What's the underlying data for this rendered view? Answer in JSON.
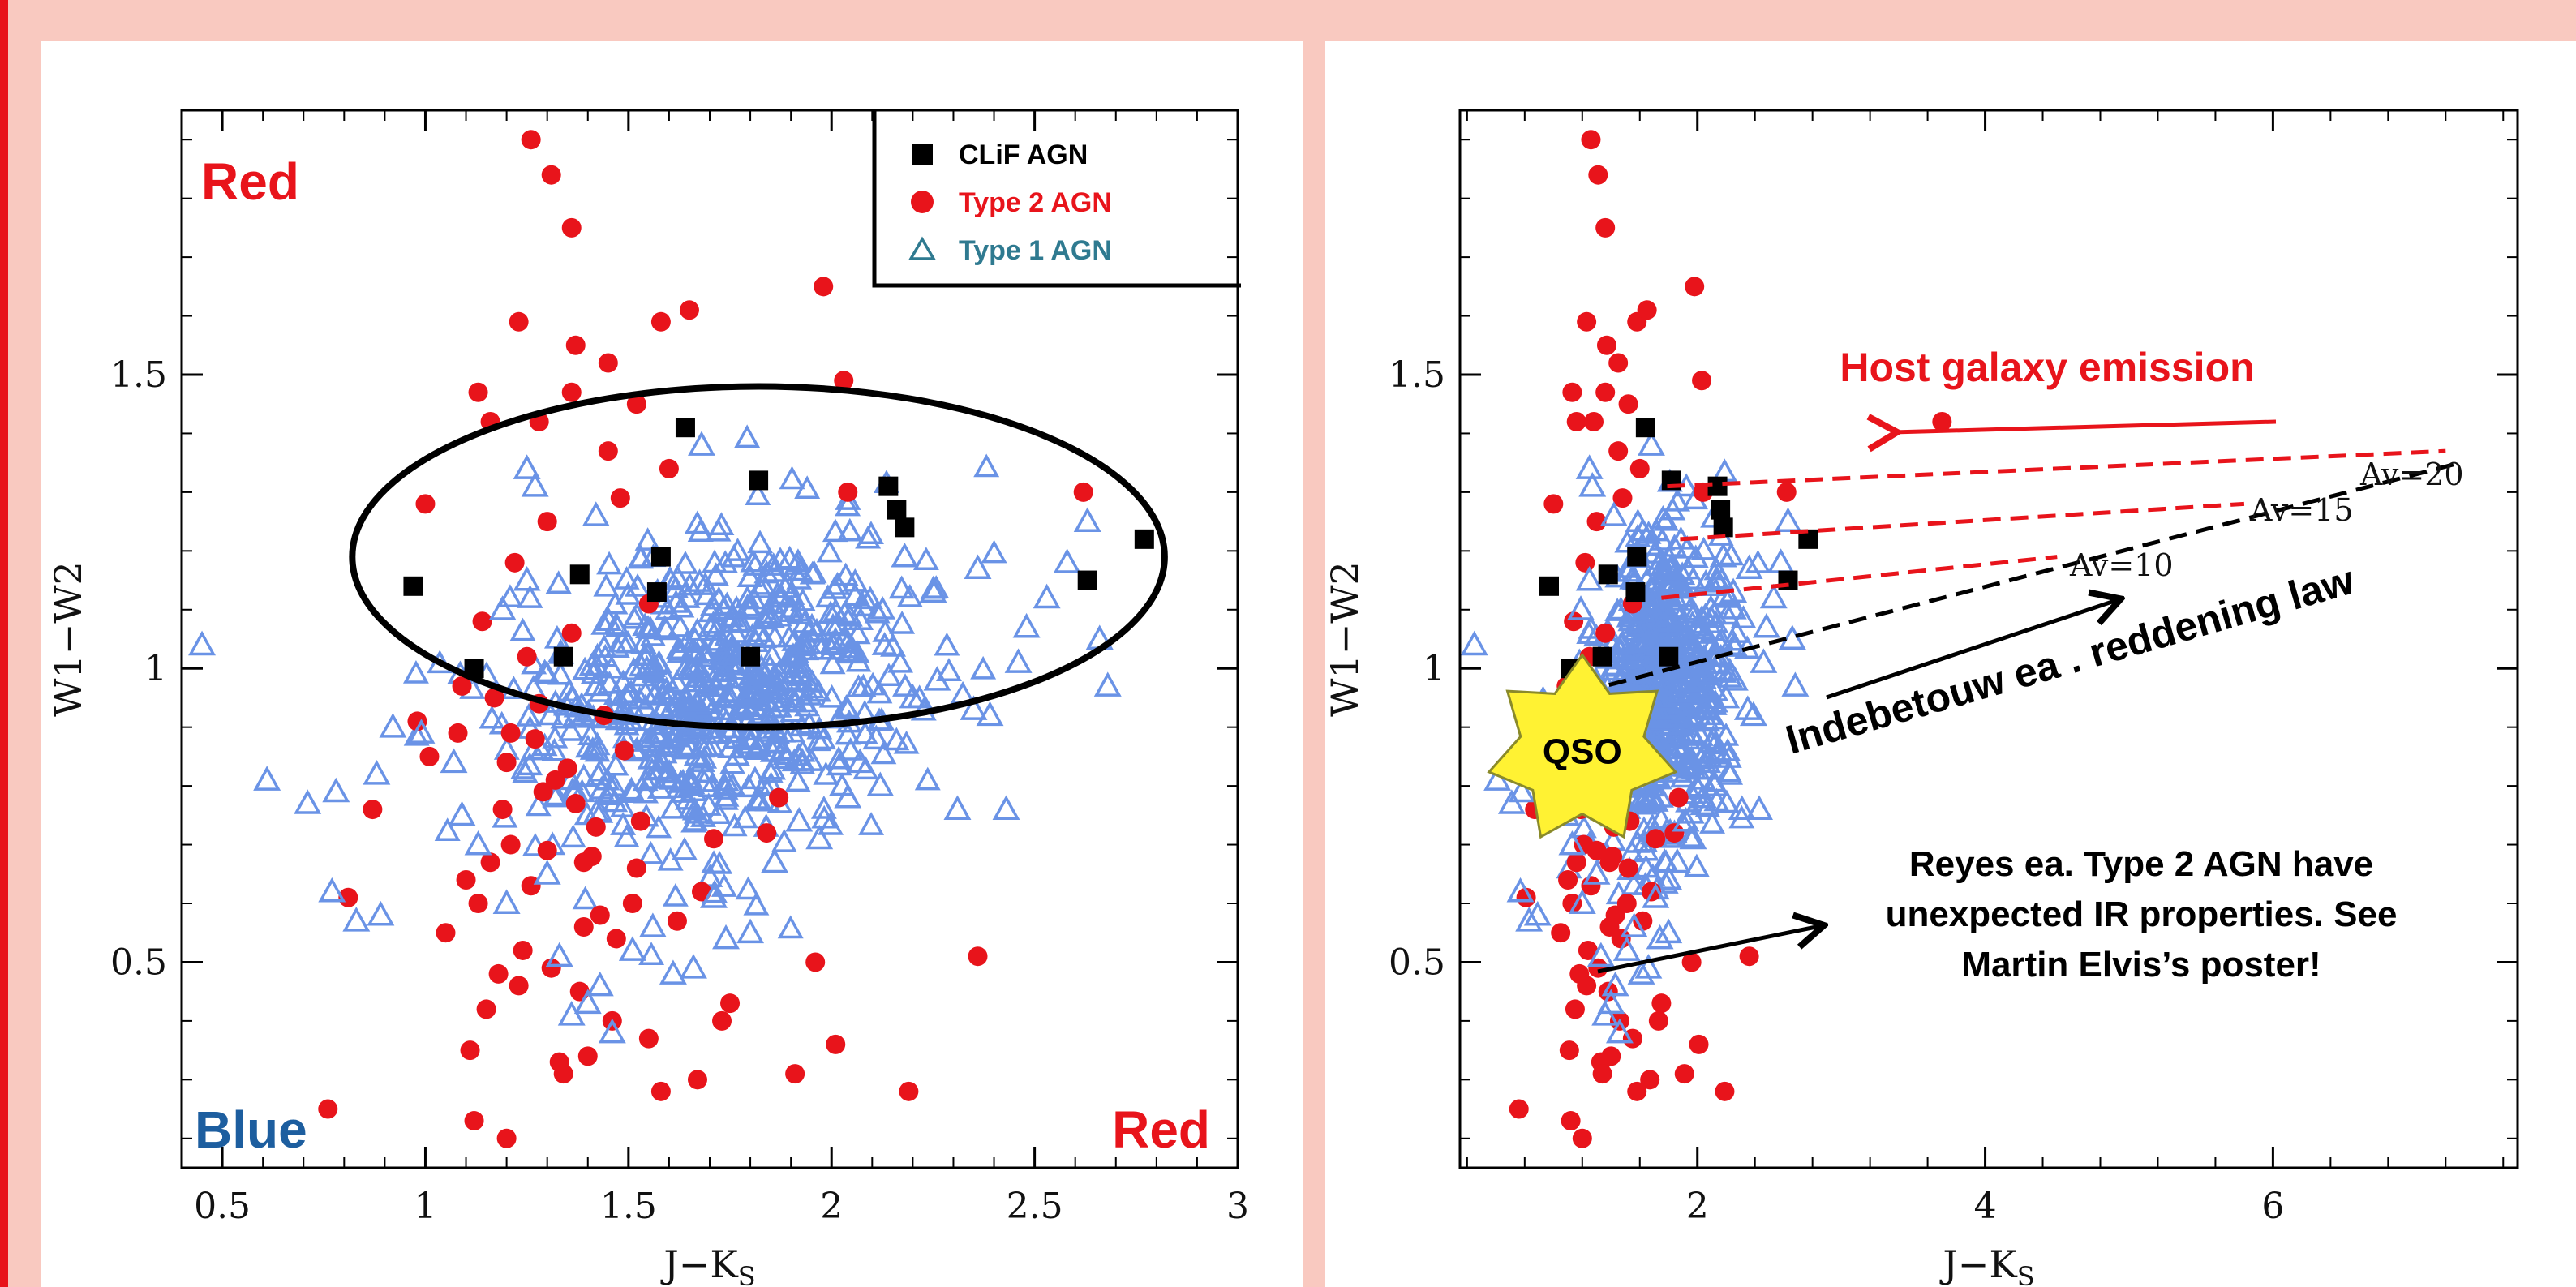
{
  "colors": {
    "red": "#e8141b",
    "blue": "#6a93e6",
    "black": "#000000",
    "legend_type1": "#2f7a90",
    "blue_label": "#1d5e9f",
    "star": "#fff233"
  },
  "chart_data": [
    {
      "type": "scatter",
      "xlabel_main": "J−K",
      "xlabel_sub": "S",
      "ylabel": "W1−W2",
      "xlim": [
        0.4,
        3.0
      ],
      "ylim": [
        0.15,
        1.95
      ],
      "xticks": [
        "0.5",
        "1",
        "1.5",
        "2",
        "2.5",
        "3"
      ],
      "yticks": [
        "0.5",
        "1",
        "1.5"
      ],
      "corner_labels": {
        "top_left": "Red",
        "bottom_left": "Blue",
        "bottom_right": "Red"
      },
      "legend": {
        "position": "top-right",
        "entries": [
          "CLiF AGN",
          "Type 2 AGN",
          "Type 1 AGN"
        ]
      },
      "ellipse": {
        "center": [
          1.82,
          1.19
        ],
        "semi_axes": [
          1.0,
          0.29
        ]
      },
      "series": [
        {
          "name": "CLiF AGN",
          "marker": "square",
          "color": "#000000",
          "x": [
            0.97,
            1.12,
            1.34,
            1.38,
            1.57,
            1.58,
            1.64,
            1.8,
            1.82,
            2.14,
            2.16,
            2.18,
            2.63,
            2.77
          ],
          "y": [
            1.14,
            1.0,
            1.02,
            1.16,
            1.13,
            1.19,
            1.41,
            1.02,
            1.32,
            1.31,
            1.27,
            1.24,
            1.15,
            1.22
          ]
        },
        {
          "name": "Type 2 AGN",
          "marker": "circle",
          "color": "#e8141b",
          "x": [
            1.26,
            1.31,
            1.37,
            1.36,
            1.16,
            1.58,
            1.65,
            1.98,
            1.36,
            1.28,
            1.23,
            1.45,
            1.6,
            1.52,
            2.04,
            2.03,
            1.13,
            2.62,
            1.45,
            0.98,
            2.36,
            2.19,
            0.76,
            0.81,
            0.87,
            1.67,
            1.91,
            1.84,
            1.01,
            1.08,
            1.21,
            1.39,
            1.51,
            1.73,
            1.4,
            1.55,
            1.75,
            1.2,
            1.33,
            1.12,
            1.87,
            1.17,
            1.0,
            1.48,
            1.3,
            1.22,
            1.14,
            1.44,
            1.27,
            1.35,
            1.29,
            1.53,
            1.41,
            1.1,
            1.62,
            1.05,
            1.96,
            1.18,
            1.38,
            1.68,
            1.24,
            1.46,
            2.01,
            1.11,
            1.34,
            1.58,
            1.15,
            1.43,
            1.26,
            1.71,
            1.19,
            1.32,
            1.49,
            1.09,
            1.25,
            1.36,
            1.55,
            1.28,
            1.21,
            1.42,
            1.16,
            1.39,
            1.31,
            1.23,
            1.47,
            1.13,
            1.3,
            1.37,
            1.2,
            1.52
          ],
          "y": [
            1.9,
            1.84,
            1.55,
            1.75,
            1.42,
            1.59,
            1.61,
            1.65,
            1.47,
            1.42,
            1.59,
            1.37,
            1.34,
            1.45,
            1.3,
            1.49,
            1.47,
            1.3,
            1.52,
            0.91,
            0.51,
            0.28,
            0.25,
            0.61,
            0.76,
            0.3,
            0.31,
            0.72,
            0.85,
            0.89,
            0.7,
            0.67,
            0.6,
            0.4,
            0.34,
            0.37,
            0.43,
            0.2,
            0.33,
            0.23,
            0.78,
            0.95,
            1.28,
            1.29,
            1.25,
            1.18,
            1.08,
            0.92,
            0.88,
            0.83,
            0.79,
            0.74,
            0.68,
            0.64,
            0.57,
            0.55,
            0.5,
            0.48,
            0.45,
            0.62,
            0.52,
            0.4,
            0.36,
            0.35,
            0.31,
            0.28,
            0.42,
            0.58,
            0.63,
            0.71,
            0.76,
            0.81,
            0.86,
            0.97,
            1.02,
            1.06,
            1.11,
            0.94,
            0.89,
            0.73,
            0.67,
            0.56,
            0.49,
            0.46,
            0.54,
            0.6,
            0.69,
            0.77,
            0.84,
            0.66
          ]
        },
        {
          "name": "Type 1 AGN",
          "marker": "triangle",
          "color": "#6a93e6",
          "x": [
            0.45,
            0.61,
            0.71,
            0.78,
            0.83,
            0.89,
            0.92,
            0.99,
            1.07,
            1.25,
            1.27,
            1.68,
            2.18,
            2.25,
            2.36,
            2.48,
            2.53,
            2.58,
            2.63,
            2.66,
            2.68,
            2.31,
            2.43,
            2.39,
            2.2,
            2.11,
            2.07,
            1.97,
            1.92,
            1.86,
            1.8,
            1.74,
            1.71,
            1.66,
            1.61,
            1.56,
            1.51,
            1.46,
            1.43,
            1.4,
            1.36,
            1.33,
            1.3,
            1.2,
            1.13,
            1.09,
            0.77,
            0.88,
            2.04,
            2.12,
            2.26,
            2.35,
            2.46,
            1.19,
            1.25,
            1.42
          ],
          "y": [
            1.04,
            0.81,
            0.77,
            0.79,
            0.57,
            0.58,
            0.9,
            0.89,
            0.84,
            1.34,
            1.31,
            1.38,
            1.19,
            1.13,
            1.17,
            1.07,
            1.12,
            1.18,
            1.25,
            1.05,
            0.97,
            0.76,
            0.76,
            0.92,
            0.95,
            0.88,
            0.84,
            0.71,
            0.74,
            0.67,
            0.55,
            0.54,
            0.61,
            0.49,
            0.48,
            0.56,
            0.52,
            0.38,
            0.46,
            0.43,
            0.41,
            0.51,
            0.65,
            0.6,
            0.7,
            0.75,
            0.62,
            0.82,
            0.78,
            0.8,
            0.98,
            0.93,
            1.01,
            1.1,
            1.15,
            1.26
          ]
        }
      ]
    },
    {
      "type": "scatter",
      "xlabel_main": "J−K",
      "xlabel_sub": "S",
      "ylabel": "W1−W2",
      "xlim": [
        0.35,
        7.7
      ],
      "ylim": [
        0.15,
        1.95
      ],
      "xticks": [
        "2",
        "4",
        "6"
      ],
      "yticks": [
        "0.5",
        "1",
        "1.5"
      ],
      "star_label": "QSO",
      "star_center": [
        1.2,
        0.86
      ],
      "annotations": {
        "host": "Host galaxy emission",
        "indebetouw": "Indebetouw  ea . reddening law",
        "reyes": [
          "Reyes ea. Type 2 AGN have",
          "unexpected IR properties. See",
          "Martin Elvis’s poster!"
        ],
        "av_labels": [
          "Av=10",
          "Av=15",
          "Av=20"
        ]
      },
      "reddening_vectors": [
        {
          "from": [
            1.79,
            1.31
          ],
          "to": [
            7.2,
            1.37
          ]
        },
        {
          "from": [
            1.88,
            1.22
          ],
          "to": [
            5.8,
            1.28
          ]
        },
        {
          "from": [
            1.75,
            1.12
          ],
          "to": [
            4.5,
            1.19
          ]
        }
      ],
      "reddening_law_line": {
        "from": [
          1.2,
          0.96
        ],
        "to": [
          7.3,
          1.35
        ]
      },
      "series": [
        {
          "name": "CLiF AGN",
          "marker": "square",
          "color": "#000000",
          "x": [
            0.97,
            1.12,
            1.34,
            1.38,
            1.57,
            1.58,
            1.64,
            1.8,
            1.82,
            2.14,
            2.16,
            2.18,
            2.63,
            2.77
          ],
          "y": [
            1.14,
            1.0,
            1.02,
            1.16,
            1.13,
            1.19,
            1.41,
            1.02,
            1.32,
            1.31,
            1.27,
            1.24,
            1.15,
            1.22
          ]
        },
        {
          "name": "Type 2 AGN",
          "marker": "circle",
          "color": "#e8141b",
          "x": [
            1.26,
            1.31,
            1.37,
            1.36,
            1.16,
            1.58,
            1.65,
            1.98,
            1.36,
            1.28,
            1.23,
            1.45,
            1.6,
            1.52,
            2.04,
            2.03,
            1.13,
            2.62,
            1.45,
            0.98,
            2.36,
            2.19,
            0.76,
            0.81,
            0.87,
            1.67,
            1.91,
            1.84,
            1.01,
            1.08,
            1.21,
            1.39,
            1.51,
            1.73,
            1.4,
            1.55,
            1.75,
            1.2,
            1.33,
            1.12,
            1.87,
            1.17,
            1.0,
            1.48,
            1.3,
            1.22,
            1.14,
            1.44,
            1.27,
            1.35,
            1.29,
            1.53,
            1.41,
            1.1,
            1.62,
            1.05,
            1.96,
            1.18,
            1.38,
            1.68,
            1.24,
            1.46,
            2.01,
            1.11,
            1.34,
            1.58,
            1.15,
            1.43,
            1.26,
            1.71,
            1.19,
            1.32,
            1.49,
            1.09,
            1.25,
            1.36,
            1.55,
            1.28,
            1.21,
            1.42,
            1.16,
            1.39,
            1.31,
            1.23,
            1.47,
            1.13,
            1.3,
            1.37,
            1.2,
            1.52,
            3.7
          ],
          "y": [
            1.9,
            1.84,
            1.55,
            1.75,
            1.42,
            1.59,
            1.61,
            1.65,
            1.47,
            1.42,
            1.59,
            1.37,
            1.34,
            1.45,
            1.3,
            1.49,
            1.47,
            1.3,
            1.52,
            0.91,
            0.51,
            0.28,
            0.25,
            0.61,
            0.76,
            0.3,
            0.31,
            0.72,
            0.85,
            0.89,
            0.7,
            0.67,
            0.6,
            0.4,
            0.34,
            0.37,
            0.43,
            0.2,
            0.33,
            0.23,
            0.78,
            0.95,
            1.28,
            1.29,
            1.25,
            1.18,
            1.08,
            0.92,
            0.88,
            0.83,
            0.79,
            0.74,
            0.68,
            0.64,
            0.57,
            0.55,
            0.5,
            0.48,
            0.45,
            0.62,
            0.52,
            0.4,
            0.36,
            0.35,
            0.31,
            0.28,
            0.42,
            0.58,
            0.63,
            0.71,
            0.76,
            0.81,
            0.86,
            0.97,
            1.02,
            1.06,
            1.11,
            0.94,
            0.89,
            0.73,
            0.67,
            0.56,
            0.49,
            0.46,
            0.54,
            0.6,
            0.69,
            0.77,
            0.84,
            0.66,
            1.42
          ]
        },
        {
          "name": "Type 1 AGN",
          "marker": "triangle",
          "color": "#6a93e6",
          "x": [
            0.45,
            0.61,
            0.71,
            0.78,
            0.83,
            0.89,
            0.92,
            0.99,
            1.07,
            1.25,
            1.27,
            1.68,
            2.18,
            2.25,
            2.36,
            2.48,
            2.53,
            2.58,
            2.63,
            2.66,
            2.68,
            2.31,
            2.43,
            2.39,
            2.2,
            2.11,
            2.07,
            1.97,
            1.92,
            1.86,
            1.8,
            1.74,
            1.71,
            1.66,
            1.61,
            1.56,
            1.51,
            1.46,
            1.43,
            1.4,
            1.36,
            1.33,
            1.3,
            1.2,
            1.13,
            1.09,
            0.77,
            0.88,
            2.04,
            2.12,
            2.26,
            2.35,
            2.46,
            1.19,
            1.25,
            1.42
          ],
          "y": [
            1.04,
            0.81,
            0.77,
            0.79,
            0.57,
            0.58,
            0.9,
            0.89,
            0.84,
            1.34,
            1.31,
            1.38,
            1.19,
            1.13,
            1.17,
            1.07,
            1.12,
            1.18,
            1.25,
            1.05,
            0.97,
            0.76,
            0.76,
            0.92,
            0.95,
            0.88,
            0.84,
            0.71,
            0.74,
            0.67,
            0.55,
            0.54,
            0.61,
            0.49,
            0.48,
            0.56,
            0.52,
            0.38,
            0.46,
            0.43,
            0.41,
            0.51,
            0.65,
            0.6,
            0.7,
            0.75,
            0.62,
            0.82,
            0.78,
            0.8,
            0.98,
            0.93,
            1.01,
            1.1,
            1.15,
            1.26
          ]
        }
      ]
    }
  ]
}
